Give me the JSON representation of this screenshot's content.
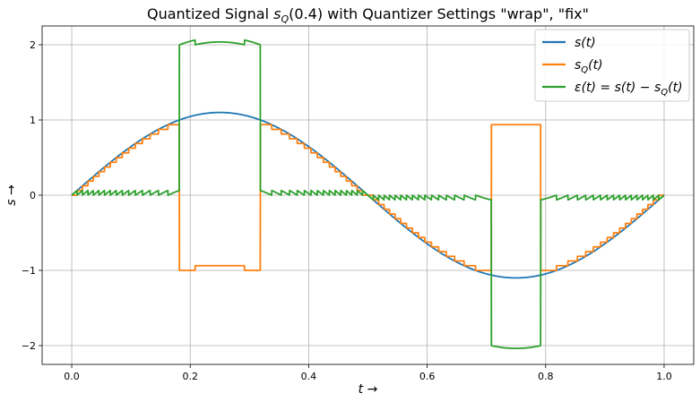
{
  "chart_data": {
    "type": "line",
    "title_parts": {
      "prefix": "Quantized Signal ",
      "sym": "s",
      "sub": "Q",
      "suffix": "(0.4) with Quantizer Settings \"wrap\", \"fix\""
    },
    "xlabel": "t →",
    "ylabel": "s →",
    "xlim": [
      -0.05,
      1.05
    ],
    "ylim": [
      -2.25,
      2.25
    ],
    "xticks": [
      0.0,
      0.2,
      0.4,
      0.6,
      0.8,
      1.0
    ],
    "xtick_labels": [
      "0.0",
      "0.2",
      "0.4",
      "0.6",
      "0.8",
      "1.0"
    ],
    "yticks": [
      -2,
      -1,
      0,
      1,
      2
    ],
    "ytick_labels": [
      "−2",
      "−1",
      "0",
      "1",
      "2"
    ],
    "grid": true,
    "legend_position": "top-right",
    "signal": {
      "amplitude": 1.1,
      "quantizer_step": 0.0625,
      "wrap_limits": [
        -1.0,
        1.0
      ],
      "t_range": [
        0.0,
        1.0
      ]
    },
    "series": [
      {
        "name": "s(t)",
        "legend": {
          "sym": "s",
          "sub": "",
          "rest": "(t)"
        },
        "color": "#1f77b4"
      },
      {
        "name": "sQ(t)",
        "legend": {
          "sym": "s",
          "sub": "Q",
          "rest": "(t)"
        },
        "color": "#ff7f0e"
      },
      {
        "name": "ε(t) = s(t) − sQ(t)",
        "legend": {
          "sym": "ε(t) = s(t) − s",
          "sub": "Q",
          "rest": "(t)"
        },
        "color": "#2ca02c"
      }
    ]
  }
}
